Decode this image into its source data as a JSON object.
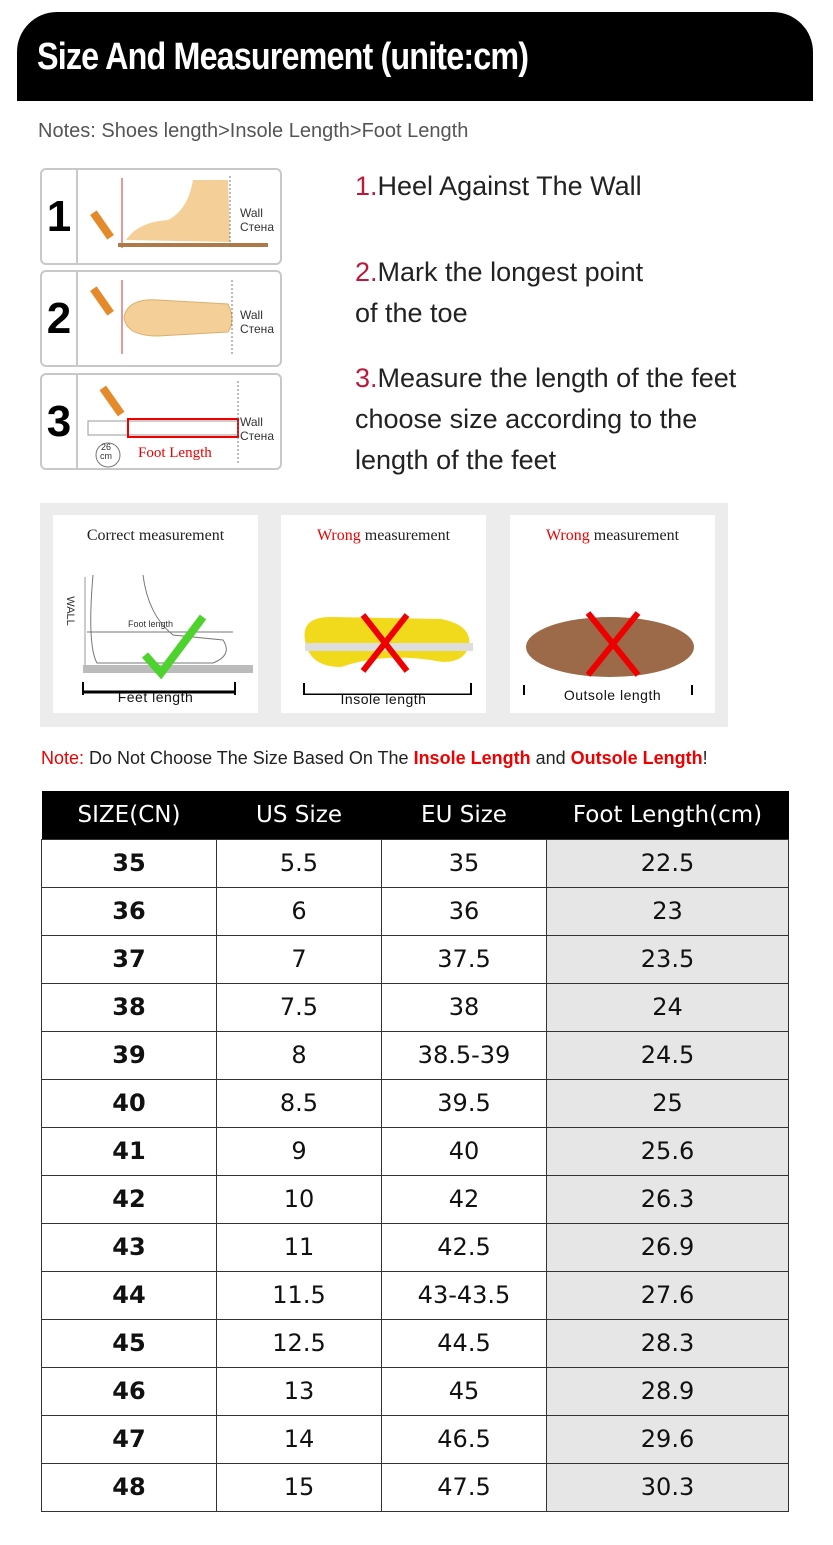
{
  "header": {
    "title": "Size And Measurement (unite:cm)"
  },
  "notes": "Notes: Shoes length>Insole Length>Foot Length",
  "steps": [
    {
      "num": "1",
      "panel_label": "1",
      "prefix": "1.",
      "lines": [
        "Heel Against The Wall"
      ]
    },
    {
      "num": "2",
      "panel_label": "2",
      "prefix": "2.",
      "lines": [
        "Mark the longest point",
        "of the toe"
      ]
    },
    {
      "num": "3",
      "panel_label": "3",
      "prefix": "3.",
      "lines": [
        "Measure the length of the feet",
        "choose size according to the",
        "length of the feet"
      ]
    }
  ],
  "wall_label": "Wall",
  "wall_label_ru": "Стена",
  "foot_length_label": "Foot Length",
  "ruler_value": "26",
  "ruler_unit": "cm",
  "comparison": [
    {
      "prefix": "Correct",
      "suffix": " measurement",
      "caption": "Feet length",
      "wall": "WALL",
      "inner": "Foot length",
      "mark": "check"
    },
    {
      "prefix": "Wrong",
      "suffix": " measurement",
      "caption": "Insole length",
      "mark": "cross"
    },
    {
      "prefix": "Wrong",
      "suffix": " measurement",
      "caption": "Outsole length",
      "mark": "cross"
    }
  ],
  "note": {
    "label": "Note:",
    "t1": " Do Not Choose The Size Based On The ",
    "b1": "Insole Length",
    "t2": " and ",
    "b2": "Outsole Length",
    "end": "!"
  },
  "colors": {
    "accent_red": "#e00000",
    "step_number": "#c0163a",
    "header_bg": "#000000"
  },
  "table": {
    "headers": [
      "SIZE(CN)",
      "US Size",
      "EU Size",
      "Foot Length(cm)"
    ],
    "rows": [
      [
        "35",
        "5.5",
        "35",
        "22.5"
      ],
      [
        "36",
        "6",
        "36",
        "23"
      ],
      [
        "37",
        "7",
        "37.5",
        "23.5"
      ],
      [
        "38",
        "7.5",
        "38",
        "24"
      ],
      [
        "39",
        "8",
        "38.5-39",
        "24.5"
      ],
      [
        "40",
        "8.5",
        "39.5",
        "25"
      ],
      [
        "41",
        "9",
        "40",
        "25.6"
      ],
      [
        "42",
        "10",
        "42",
        "26.3"
      ],
      [
        "43",
        "11",
        "42.5",
        "26.9"
      ],
      [
        "44",
        "11.5",
        "43-43.5",
        "27.6"
      ],
      [
        "45",
        "12.5",
        "44.5",
        "28.3"
      ],
      [
        "46",
        "13",
        "45",
        "28.9"
      ],
      [
        "47",
        "14",
        "46.5",
        "29.6"
      ],
      [
        "48",
        "15",
        "47.5",
        "30.3"
      ]
    ]
  }
}
